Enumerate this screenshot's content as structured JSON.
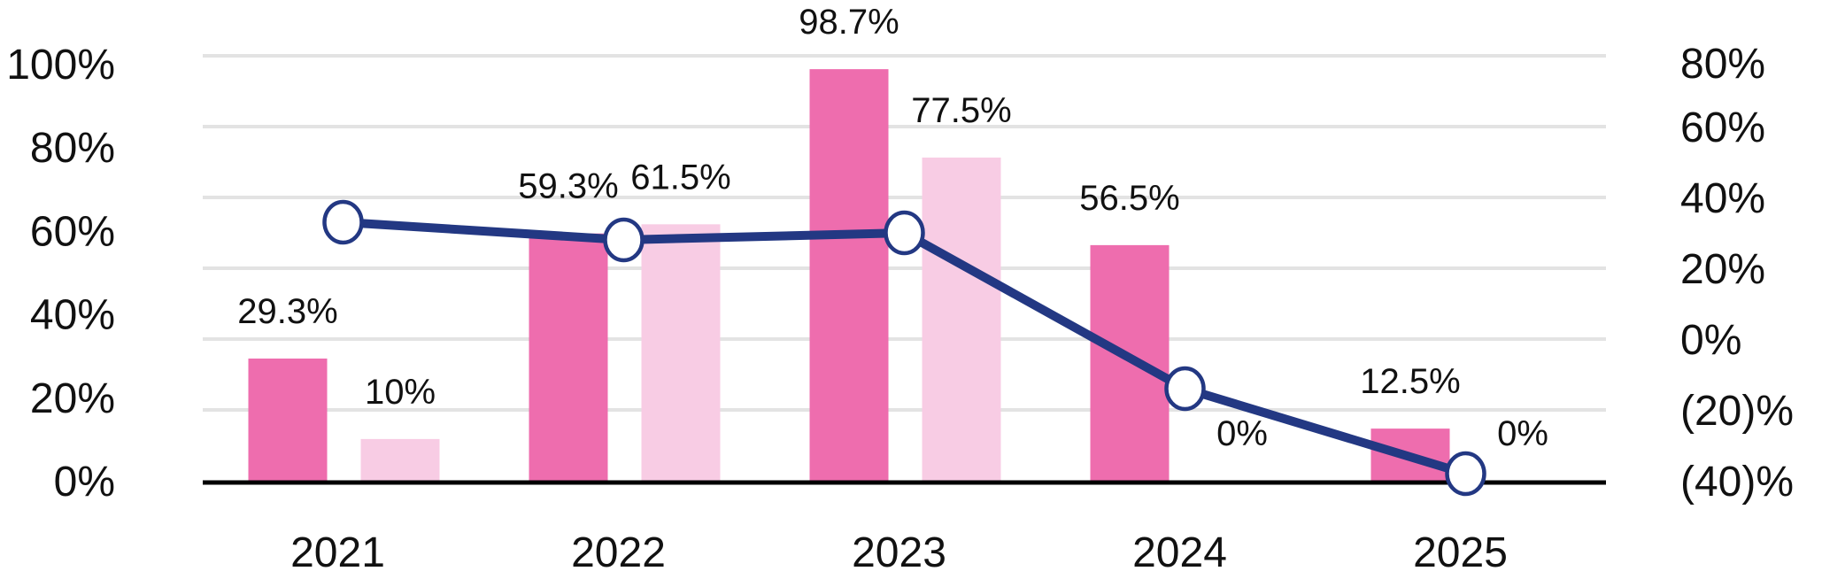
{
  "chart_data": {
    "type": "bar",
    "categories": [
      "2021",
      "2022",
      "2023",
      "2024",
      "2025"
    ],
    "series": [
      {
        "kind": "bar",
        "axis": "left",
        "color": "#EE6DAE",
        "values": [
          29.3,
          59.3,
          98.7,
          56.5,
          12.5
        ],
        "labels": [
          "29.3%",
          "59.3%",
          "98.7%",
          "56.5%",
          "12.5%"
        ]
      },
      {
        "kind": "bar",
        "axis": "left",
        "color": "#F8CCE4",
        "values": [
          10,
          61.5,
          77.5,
          0,
          0
        ],
        "labels": [
          "10%",
          "61.5%",
          "77.5%",
          "0%",
          "0%"
        ]
      },
      {
        "kind": "line",
        "axis": "right",
        "color": "#233883",
        "values": [
          33,
          28,
          30,
          -14,
          -38
        ]
      }
    ],
    "left_axis": {
      "range": [
        0,
        100
      ],
      "ticks": [
        0,
        20,
        40,
        60,
        80,
        100
      ],
      "tick_labels": [
        "0%",
        "20%",
        "40%",
        "60%",
        "80%",
        "100%"
      ]
    },
    "right_axis": {
      "range": [
        -40,
        80
      ],
      "ticks": [
        -40,
        -20,
        0,
        20,
        40,
        60,
        80
      ],
      "tick_labels": [
        "(40)%",
        "(20)%",
        "0%",
        "20%",
        "40%",
        "60%",
        "80%"
      ]
    },
    "grid": true,
    "title": "",
    "xlabel": "",
    "ylabel": ""
  }
}
